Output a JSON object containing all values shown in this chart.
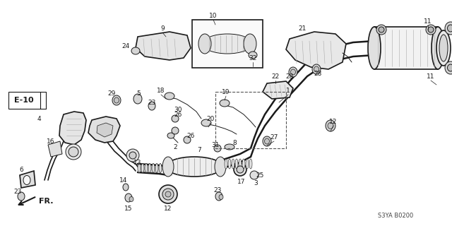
{
  "background_color": "#ffffff",
  "line_color": "#1a1a1a",
  "diagram_code": "S3YA B0200",
  "ref_code": "E-10",
  "direction_label": "FR.",
  "fig_width": 6.4,
  "fig_height": 3.2,
  "dpi": 100
}
